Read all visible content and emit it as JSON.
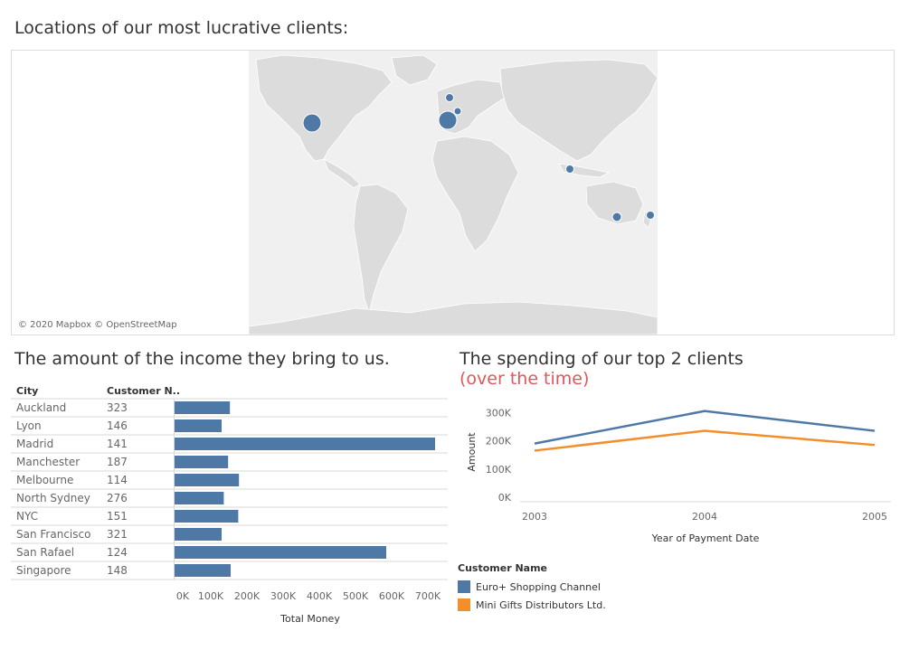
{
  "map": {
    "title": "Locations of our most lucrative clients:",
    "credit": "© 2020 Mapbox © OpenStreetMap",
    "bubble_color": "#4e79a7"
  },
  "bar_panel": {
    "title": "The amount of the income they bring to us."
  },
  "line_panel": {
    "title": "The spending of our top 2 clients",
    "subtitle": "(over the time)"
  },
  "chart_data": [
    {
      "type": "bar",
      "orientation": "horizontal",
      "columns": [
        "City",
        "Customer N.."
      ],
      "categories": [
        "Auckland",
        "Lyon",
        "Madrid",
        "Manchester",
        "Melbourne",
        "North Sydney",
        "NYC",
        "San Francisco",
        "San Rafael",
        "Singapore"
      ],
      "customer_numbers": [
        "323",
        "146",
        "141",
        "187",
        "114",
        "276",
        "151",
        "321",
        "124",
        "148"
      ],
      "values": [
        153000,
        130000,
        720000,
        148000,
        178000,
        136000,
        176000,
        130000,
        585000,
        155000
      ],
      "xlabel": "Total Money",
      "xlim": [
        0,
        750000
      ],
      "ticks": [
        0,
        100000,
        200000,
        300000,
        400000,
        500000,
        600000,
        700000
      ],
      "tick_labels": [
        "0K",
        "100K",
        "200K",
        "300K",
        "400K",
        "500K",
        "600K",
        "700K"
      ],
      "color": "#4e79a7"
    },
    {
      "type": "line",
      "x": [
        "2003",
        "2004",
        "2005"
      ],
      "series": [
        {
          "name": "Euro+ Shopping Channel",
          "values": [
            190000,
            305000,
            235000
          ],
          "color": "#4e79a7"
        },
        {
          "name": "Mini Gifts Distributors Ltd.",
          "values": [
            165000,
            235000,
            185000
          ],
          "color": "#f28e2b"
        }
      ],
      "xlabel": "Year of Payment Date",
      "ylabel": "Amount",
      "ylim": [
        0,
        320000
      ],
      "yticks": [
        0,
        100000,
        200000,
        300000
      ],
      "ytick_labels": [
        "0K",
        "100K",
        "200K",
        "300K"
      ],
      "legend_title": "Customer Name",
      "legend_position": "bottom-left"
    }
  ]
}
